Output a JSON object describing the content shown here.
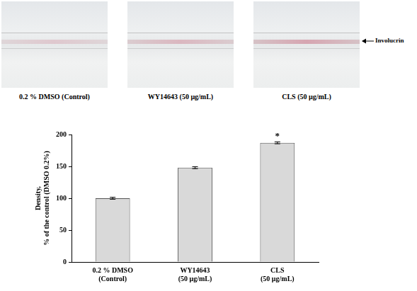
{
  "images": [
    {
      "label": "0.2 % DMSO (Control)"
    },
    {
      "label": "WY14643 (50 μg/mL)"
    },
    {
      "label": "CLS (50 μg/mL)"
    }
  ],
  "marker_label": "Involucrin",
  "chart_data": {
    "type": "bar",
    "y_label": [
      "Density,",
      "% of the control (DMSO 0.2%)"
    ],
    "categories": [
      [
        "0.2 % DMSO",
        "(Control)"
      ],
      [
        "WY14643",
        "(50 μg/mL)"
      ],
      [
        "CLS",
        "(50 μg/mL)"
      ]
    ],
    "values": [
      100,
      148,
      187
    ],
    "errors": [
      1.5,
      1.5,
      1.5
    ],
    "color": "#d9d9d9",
    "ylim": [
      0,
      200
    ],
    "yticks": [
      0,
      50,
      100,
      150,
      200
    ],
    "grid": false,
    "annotations": [
      {
        "text": "*",
        "category_index": 2
      }
    ]
  }
}
